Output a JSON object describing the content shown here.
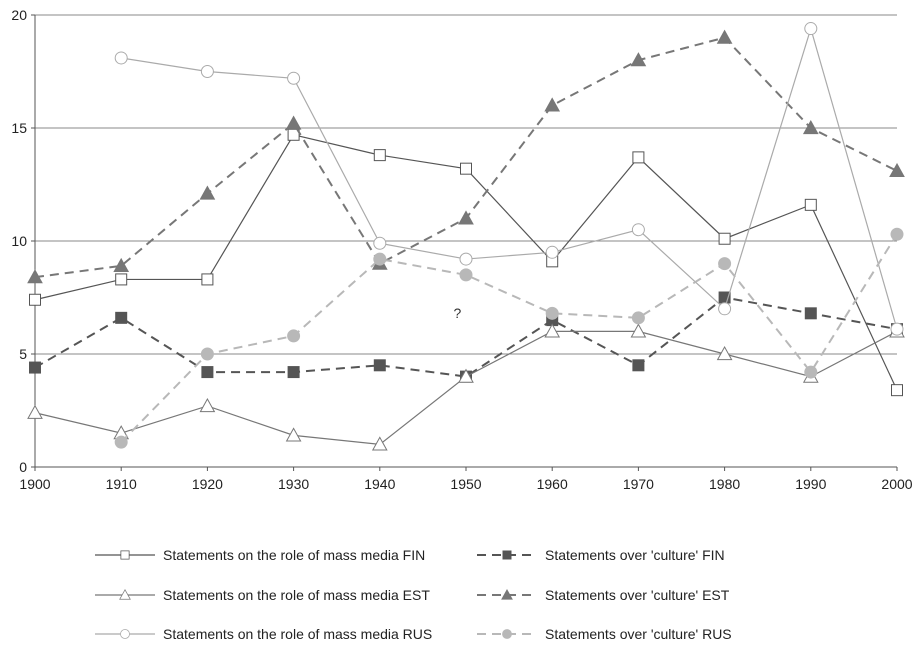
{
  "chart_data": {
    "type": "line",
    "title": "",
    "xlabel": "",
    "ylabel": "",
    "x": [
      1900,
      1910,
      1920,
      1930,
      1940,
      1950,
      1960,
      1970,
      1980,
      1990,
      2000
    ],
    "x_tick_labels": [
      "1900",
      "1910",
      "1920",
      "1930",
      "1940",
      "1950",
      "1960",
      "1970",
      "1980",
      "1990",
      "2000"
    ],
    "ylim": [
      0,
      20
    ],
    "y_ticks": [
      0,
      5,
      10,
      15,
      20
    ],
    "y_tick_labels": [
      "0",
      "5",
      "10",
      "15",
      "20"
    ],
    "grid": "horizontal",
    "legend_position": "bottom",
    "annotations": [
      {
        "text": "?",
        "x": 1949,
        "y": 6.6
      }
    ],
    "series": [
      {
        "name": "Statements on the role of mass media FIN",
        "color": "#555555",
        "dash": "solid",
        "marker": "square-open",
        "values": [
          7.4,
          8.3,
          8.3,
          14.7,
          13.8,
          13.2,
          9.1,
          13.7,
          10.1,
          11.6,
          3.4
        ]
      },
      {
        "name": "Statements over 'culture' FIN",
        "color": "#555555",
        "dash": "dashed",
        "marker": "square-filled",
        "values": [
          4.4,
          6.6,
          4.2,
          4.2,
          4.5,
          4.0,
          6.5,
          4.5,
          7.5,
          6.8,
          6.1
        ]
      },
      {
        "name": "Statements on the role of mass media EST",
        "color": "#777777",
        "dash": "solid",
        "marker": "triangle-open",
        "values": [
          2.4,
          1.5,
          2.7,
          1.4,
          1.0,
          4.0,
          6.0,
          6.0,
          5.0,
          4.0,
          6.0
        ]
      },
      {
        "name": "Statements over 'culture'  EST",
        "color": "#777777",
        "dash": "dashed",
        "marker": "triangle-filled",
        "values": [
          8.4,
          8.9,
          12.1,
          15.2,
          9.0,
          11.0,
          16.0,
          18.0,
          19.0,
          15.0,
          13.1
        ]
      },
      {
        "name": "Statements on the role of mass media RUS",
        "color": "#aaaaaa",
        "dash": "solid",
        "marker": "circle-open",
        "values": [
          null,
          18.1,
          17.5,
          17.2,
          9.9,
          9.2,
          9.5,
          10.5,
          7.0,
          19.4,
          6.1
        ]
      },
      {
        "name": "Statements over 'culture' RUS",
        "color": "#b8b8b8",
        "dash": "dashed",
        "marker": "circle-filled",
        "values": [
          null,
          1.1,
          5.0,
          5.8,
          9.2,
          8.5,
          6.8,
          6.6,
          9.0,
          4.2,
          10.3
        ]
      }
    ]
  }
}
